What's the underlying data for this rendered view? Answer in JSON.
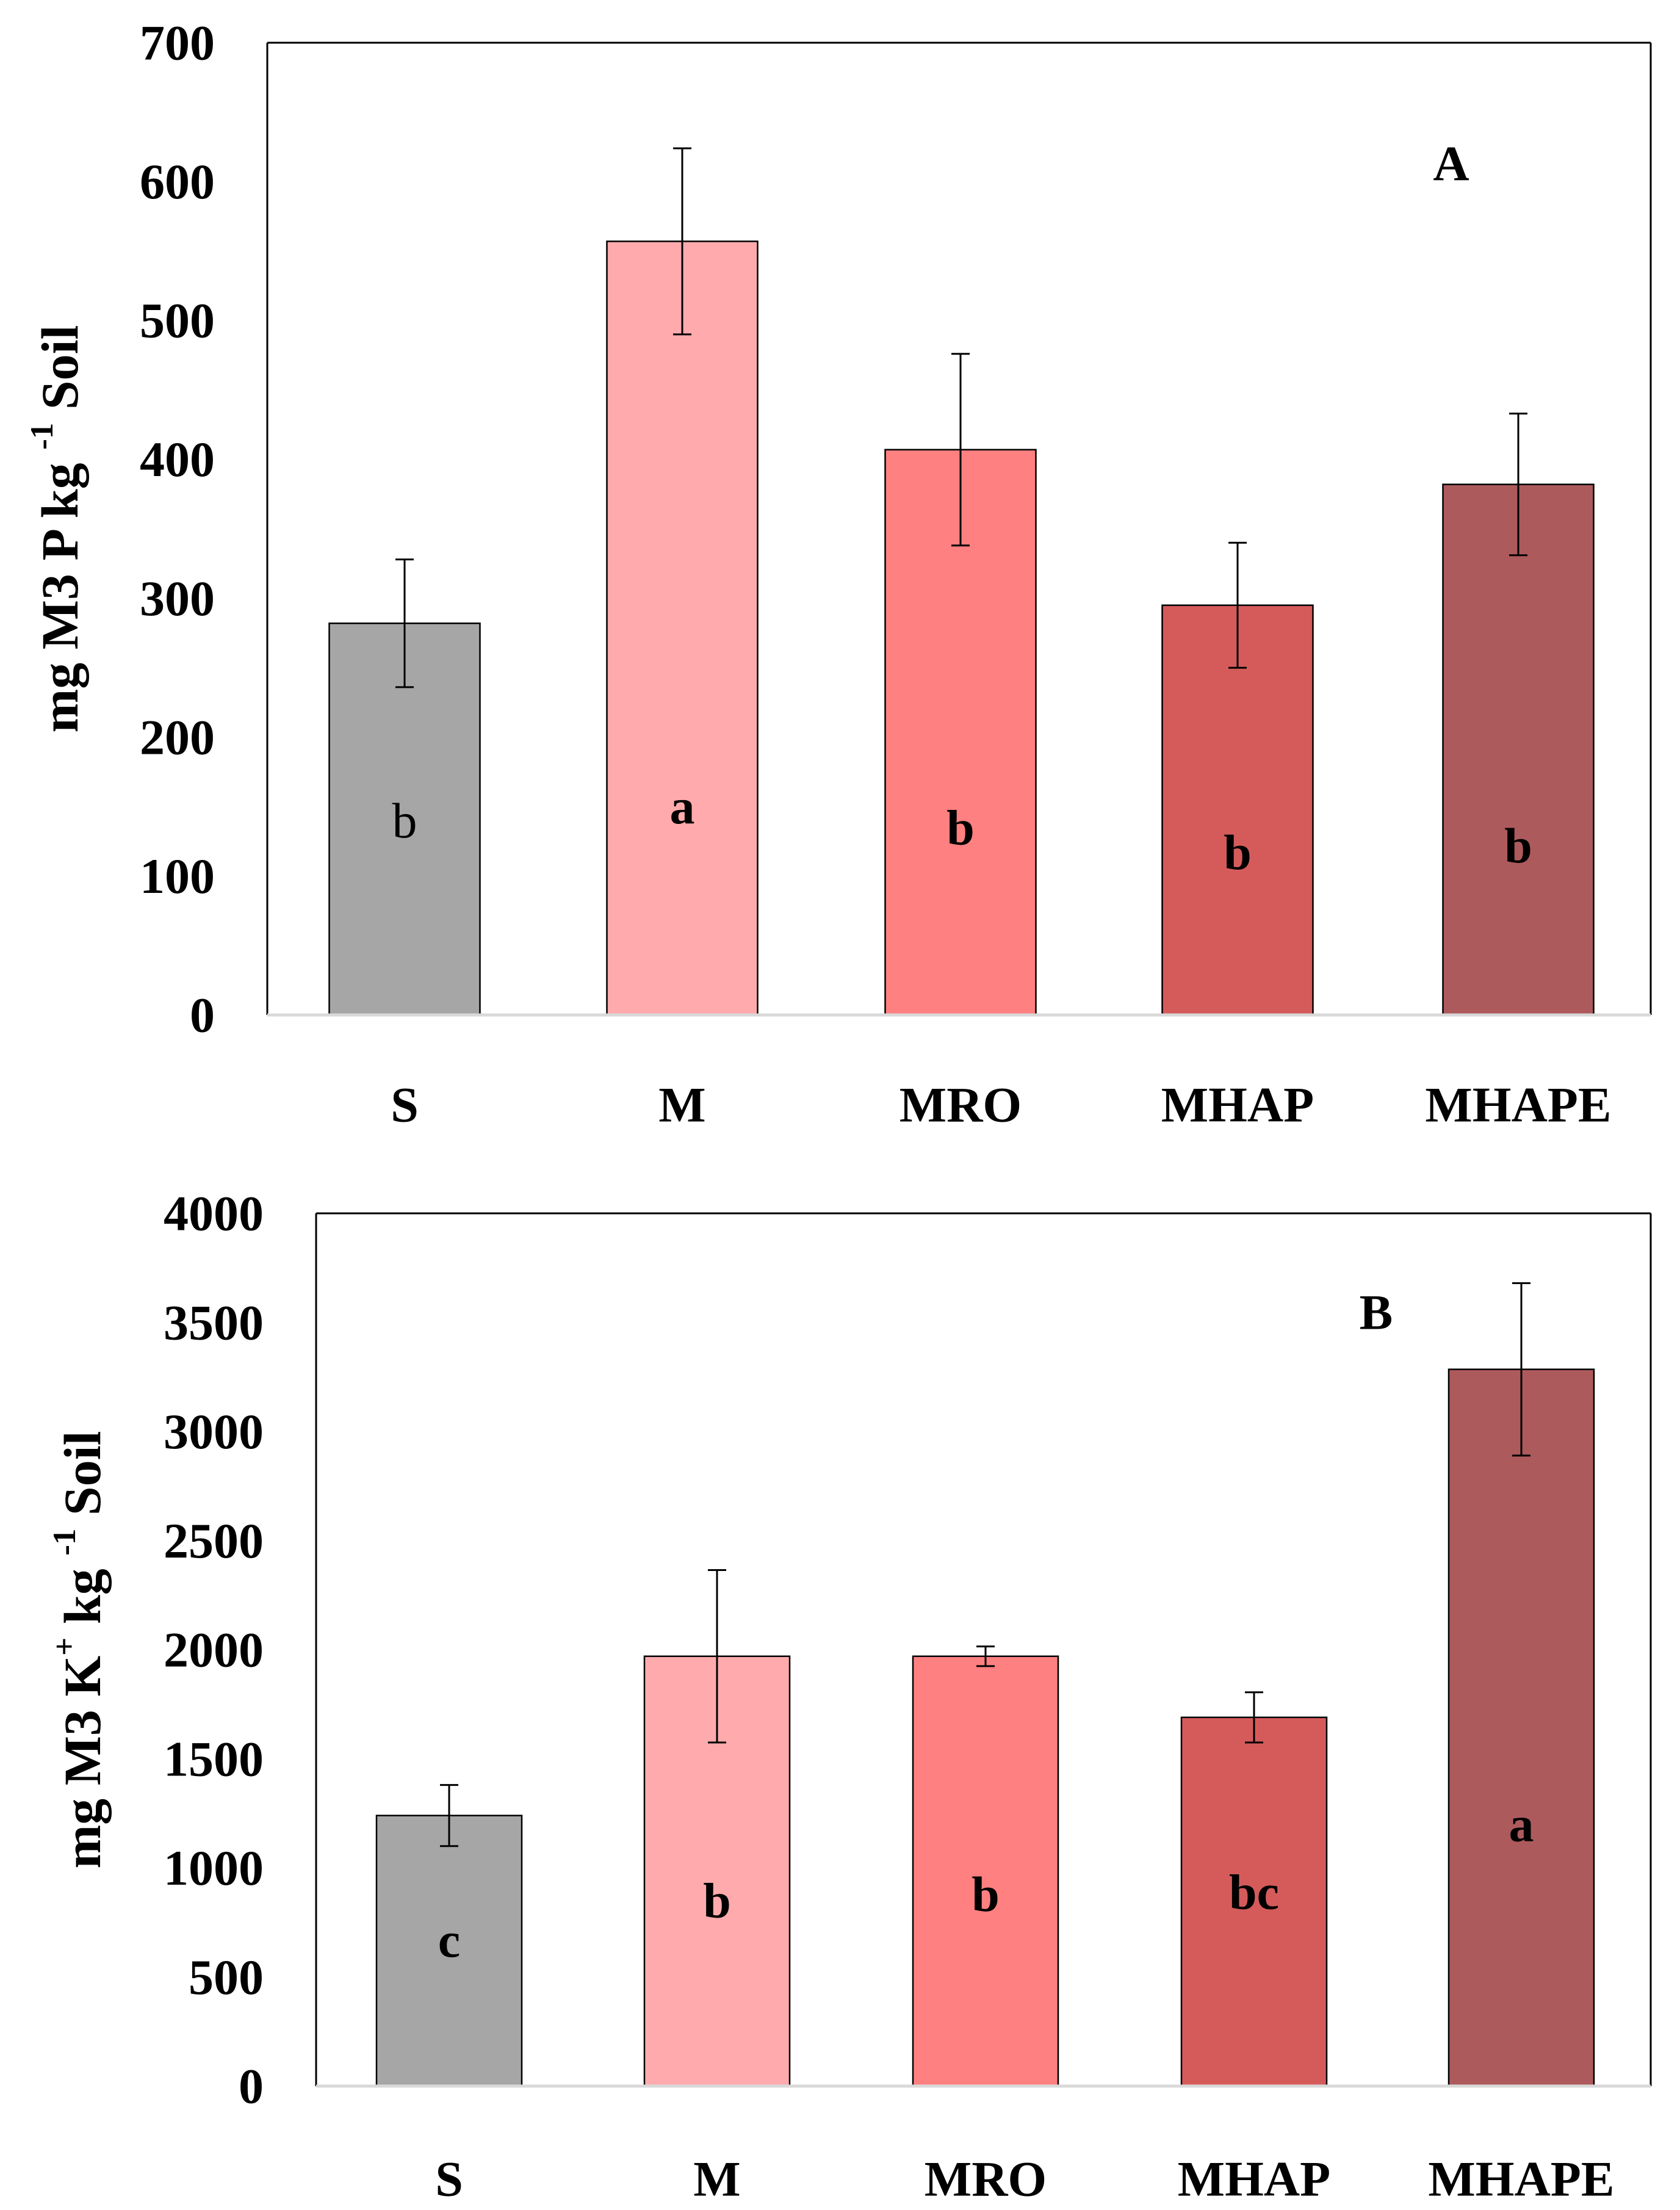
{
  "colors": {
    "S": "#a6a6a6",
    "M": "#ffabad",
    "MRO": "#ff8080",
    "MHAP": "#d55b5b",
    "MHAPE": "#ad5a5c",
    "axis": "#d9d9d9",
    "frame": "#000000"
  },
  "chart_data": [
    {
      "type": "bar",
      "panel_label": "A",
      "ylabel": "mg M3 P kg -1 Soil",
      "ylabel_parts": {
        "main": "mg M3 P kg ",
        "sup": "-1",
        "tail": " Soil"
      },
      "categories": [
        "S",
        "M",
        "MRO",
        "MHAP",
        "MHAPE"
      ],
      "values": [
        282,
        557,
        407,
        295,
        382
      ],
      "errors": [
        46,
        67,
        69,
        45,
        51
      ],
      "letters": [
        "b",
        "a",
        "b",
        "b",
        "b"
      ],
      "letters_bold": [
        false,
        true,
        true,
        true,
        true
      ],
      "letter_values": [
        140,
        150,
        135,
        117,
        122
      ],
      "ylim": [
        0,
        700
      ],
      "yticks": [
        0,
        100,
        200,
        300,
        400,
        500,
        600,
        700
      ],
      "grid": false
    },
    {
      "type": "bar",
      "panel_label": "B",
      "ylabel": "mg M3 K+ kg -1 Soil",
      "ylabel_parts": {
        "main": "mg M3 K",
        "sup1": "+",
        "mid": " kg ",
        "sup": "-1",
        "tail": " Soil"
      },
      "categories": [
        "S",
        "M",
        "MRO",
        "MHAP",
        "MHAPE"
      ],
      "values": [
        1240,
        1970,
        1970,
        1690,
        3285
      ],
      "errors": [
        140,
        395,
        45,
        115,
        395
      ],
      "letters": [
        "c",
        "b",
        "b",
        "bc",
        "a"
      ],
      "letters_bold": [
        true,
        true,
        true,
        true,
        true
      ],
      "letter_values": [
        670,
        850,
        880,
        890,
        1200
      ],
      "ylim": [
        0,
        4000
      ],
      "yticks": [
        0,
        500,
        1000,
        1500,
        2000,
        2500,
        3000,
        3500,
        4000
      ],
      "grid": false
    }
  ]
}
